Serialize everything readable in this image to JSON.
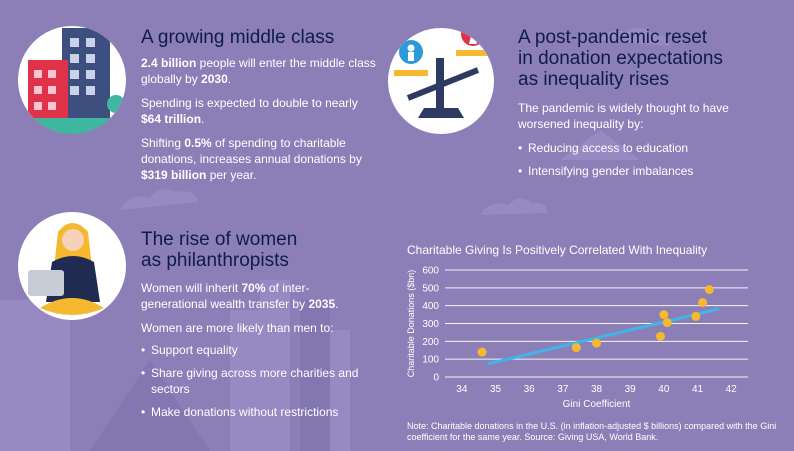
{
  "section1": {
    "heading": "A growing middle class",
    "para1": [
      {
        "t": "2.4 billion",
        "b": true
      },
      {
        "t": " people will enter the middle class globally by ",
        "b": false
      },
      {
        "t": "2030",
        "b": true
      },
      {
        "t": ".",
        "b": false
      }
    ],
    "para2": [
      {
        "t": "Spending is expected to double to nearly ",
        "b": false
      },
      {
        "t": "$64 trillion",
        "b": true
      },
      {
        "t": ".",
        "b": false
      }
    ],
    "para3": [
      {
        "t": "Shifting ",
        "b": false
      },
      {
        "t": "0.5%",
        "b": true
      },
      {
        "t": " of spending to charitable donations, increases annual donations by ",
        "b": false
      },
      {
        "t": "$319 billion",
        "b": true
      },
      {
        "t": " per year.",
        "b": false
      }
    ]
  },
  "section2": {
    "heading": "A post-pandemic reset in donation expectations as inequality rises",
    "intro": "The pandemic is widely thought to have worsened inequality by:",
    "bullets": [
      "Reducing access to education",
      "Intensifying gender imbalances"
    ]
  },
  "section3": {
    "heading": "The rise of women as philanthropists",
    "para1": [
      {
        "t": "Women will inherit ",
        "b": false
      },
      {
        "t": "70%",
        "b": true
      },
      {
        "t": " of inter-generational wealth transfer by ",
        "b": false
      },
      {
        "t": "2035",
        "b": true
      },
      {
        "t": ".",
        "b": false
      }
    ],
    "intro": "Women are more likely than men to:",
    "bullets": [
      "Support equality",
      "Share giving across more charities and sectors",
      "Make donations without restrictions"
    ]
  },
  "chart_data": {
    "type": "scatter",
    "title": "Charitable Giving Is Positively Correlated With Inequality",
    "xlabel": "Gini Coefficient",
    "ylabel": "Charitable Donations ($bn)",
    "xlim": [
      33.5,
      42.5
    ],
    "ylim": [
      0,
      600
    ],
    "xticks": [
      34,
      35,
      36,
      37,
      38,
      39,
      40,
      41,
      42
    ],
    "yticks": [
      0,
      100,
      200,
      300,
      400,
      500,
      600
    ],
    "grid": true,
    "points": [
      {
        "x": 34.6,
        "y": 140
      },
      {
        "x": 37.4,
        "y": 165
      },
      {
        "x": 38.0,
        "y": 190
      },
      {
        "x": 39.9,
        "y": 228
      },
      {
        "x": 40.0,
        "y": 350
      },
      {
        "x": 40.1,
        "y": 305
      },
      {
        "x": 40.95,
        "y": 340
      },
      {
        "x": 41.15,
        "y": 418
      },
      {
        "x": 41.35,
        "y": 490
      }
    ],
    "trendline": {
      "x": [
        34.8,
        41.6
      ],
      "y": [
        75,
        380
      ]
    },
    "point_color": "#f5b82e",
    "trend_color": "#3fb6e8"
  },
  "note": "Note: Charitable donations in the U.S. (in inflation-adjusted $ billions) compared with the Gini coefficient for the same year. Source: Giving USA, World Bank.",
  "colors": {
    "background": "#8c7fb8",
    "heading": "#0f1b4f",
    "accent_red": "#e0334a",
    "accent_blue": "#2c9ad8",
    "skyline": "#a196c8"
  },
  "icons": [
    "building-icon",
    "balance-scale-icon",
    "woman-laptop-icon"
  ]
}
